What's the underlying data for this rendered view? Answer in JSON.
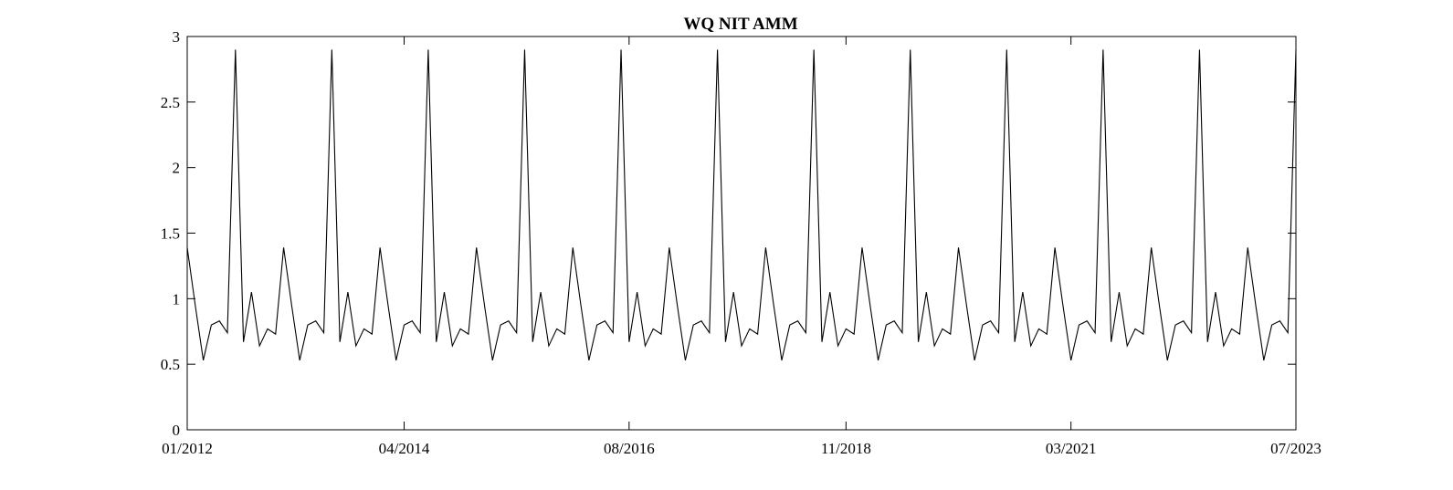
{
  "chart_data": {
    "type": "line",
    "title": "WQ NIT AMM",
    "xlabel": "",
    "ylabel": "",
    "xlim": [
      "2012-01",
      "2023-07"
    ],
    "ylim": [
      0,
      3
    ],
    "grid": false,
    "x_ticks": [
      "2012-01",
      "2014-04",
      "2016-08",
      "2018-11",
      "2021-03",
      "2023-07"
    ],
    "x_tick_labels": [
      "01/2012",
      "04/2014",
      "08/2016",
      "11/2018",
      "03/2021",
      "07/2023"
    ],
    "y_ticks": [
      0,
      0.5,
      1,
      1.5,
      2,
      2.5,
      3
    ],
    "y_tick_labels": [
      "0",
      "0.5",
      "1",
      "1.5",
      "2",
      "2.5",
      "3"
    ],
    "series": [
      {
        "color": "#000000",
        "x": [
          "2012-01",
          "2012-02",
          "2012-03",
          "2012-04",
          "2012-05",
          "2012-06",
          "2012-07",
          "2012-08",
          "2012-09",
          "2012-10",
          "2012-11",
          "2012-12",
          "2013-01",
          "2013-02",
          "2013-03",
          "2013-04",
          "2013-05",
          "2013-06",
          "2013-07",
          "2013-08",
          "2013-09",
          "2013-10",
          "2013-11",
          "2013-12",
          "2014-01",
          "2014-02",
          "2014-03",
          "2014-04",
          "2014-05",
          "2014-06",
          "2014-07",
          "2014-08",
          "2014-09",
          "2014-10",
          "2014-11",
          "2014-12",
          "2015-01",
          "2015-02",
          "2015-03",
          "2015-04",
          "2015-05",
          "2015-06",
          "2015-07",
          "2015-08",
          "2015-09",
          "2015-10",
          "2015-11",
          "2015-12",
          "2016-01",
          "2016-02",
          "2016-03",
          "2016-04",
          "2016-05",
          "2016-06",
          "2016-07",
          "2016-08",
          "2016-09",
          "2016-10",
          "2016-11",
          "2016-12",
          "2017-01",
          "2017-02",
          "2017-03",
          "2017-04",
          "2017-05",
          "2017-06",
          "2017-07",
          "2017-08",
          "2017-09",
          "2017-10",
          "2017-11",
          "2017-12",
          "2018-01",
          "2018-02",
          "2018-03",
          "2018-04",
          "2018-05",
          "2018-06",
          "2018-07",
          "2018-08",
          "2018-09",
          "2018-10",
          "2018-11",
          "2018-12",
          "2019-01",
          "2019-02",
          "2019-03",
          "2019-04",
          "2019-05",
          "2019-06",
          "2019-07",
          "2019-08",
          "2019-09",
          "2019-10",
          "2019-11",
          "2019-12",
          "2020-01",
          "2020-02",
          "2020-03",
          "2020-04",
          "2020-05",
          "2020-06",
          "2020-07",
          "2020-08",
          "2020-09",
          "2020-10",
          "2020-11",
          "2020-12",
          "2021-01",
          "2021-02",
          "2021-03",
          "2021-04",
          "2021-05",
          "2021-06",
          "2021-07",
          "2021-08",
          "2021-09",
          "2021-10",
          "2021-11",
          "2021-12",
          "2022-01",
          "2022-02",
          "2022-03",
          "2022-04",
          "2022-05",
          "2022-06",
          "2022-07",
          "2022-08",
          "2022-09",
          "2022-10",
          "2022-11",
          "2022-12",
          "2023-01",
          "2023-02",
          "2023-03",
          "2023-04",
          "2023-05",
          "2023-06",
          "2023-07"
        ],
        "values": [
          1.39,
          0.95,
          0.53,
          0.8,
          0.83,
          0.74,
          2.9,
          0.67,
          1.05,
          0.64,
          0.77,
          0.73,
          1.39,
          0.95,
          0.53,
          0.8,
          0.83,
          0.74,
          2.9,
          0.67,
          1.05,
          0.64,
          0.77,
          0.73,
          1.39,
          0.95,
          0.53,
          0.8,
          0.83,
          0.74,
          2.9,
          0.67,
          1.05,
          0.64,
          0.77,
          0.73,
          1.39,
          0.95,
          0.53,
          0.8,
          0.83,
          0.74,
          2.9,
          0.67,
          1.05,
          0.64,
          0.77,
          0.73,
          1.39,
          0.95,
          0.53,
          0.8,
          0.83,
          0.74,
          2.9,
          0.67,
          1.05,
          0.64,
          0.77,
          0.73,
          1.39,
          0.95,
          0.53,
          0.8,
          0.83,
          0.74,
          2.9,
          0.67,
          1.05,
          0.64,
          0.77,
          0.73,
          1.39,
          0.95,
          0.53,
          0.8,
          0.83,
          0.74,
          2.9,
          0.67,
          1.05,
          0.64,
          0.77,
          0.73,
          1.39,
          0.95,
          0.53,
          0.8,
          0.83,
          0.74,
          2.9,
          0.67,
          1.05,
          0.64,
          0.77,
          0.73,
          1.39,
          0.95,
          0.53,
          0.8,
          0.83,
          0.74,
          2.9,
          0.67,
          1.05,
          0.64,
          0.77,
          0.73,
          1.39,
          0.95,
          0.53,
          0.8,
          0.83,
          0.74,
          2.9,
          0.67,
          1.05,
          0.64,
          0.77,
          0.73,
          1.39,
          0.95,
          0.53,
          0.8,
          0.83,
          0.74,
          2.9,
          0.67,
          1.05,
          0.64,
          0.77,
          0.73,
          1.39,
          0.95,
          0.53,
          0.8,
          0.83,
          0.74,
          2.9
        ]
      }
    ]
  }
}
